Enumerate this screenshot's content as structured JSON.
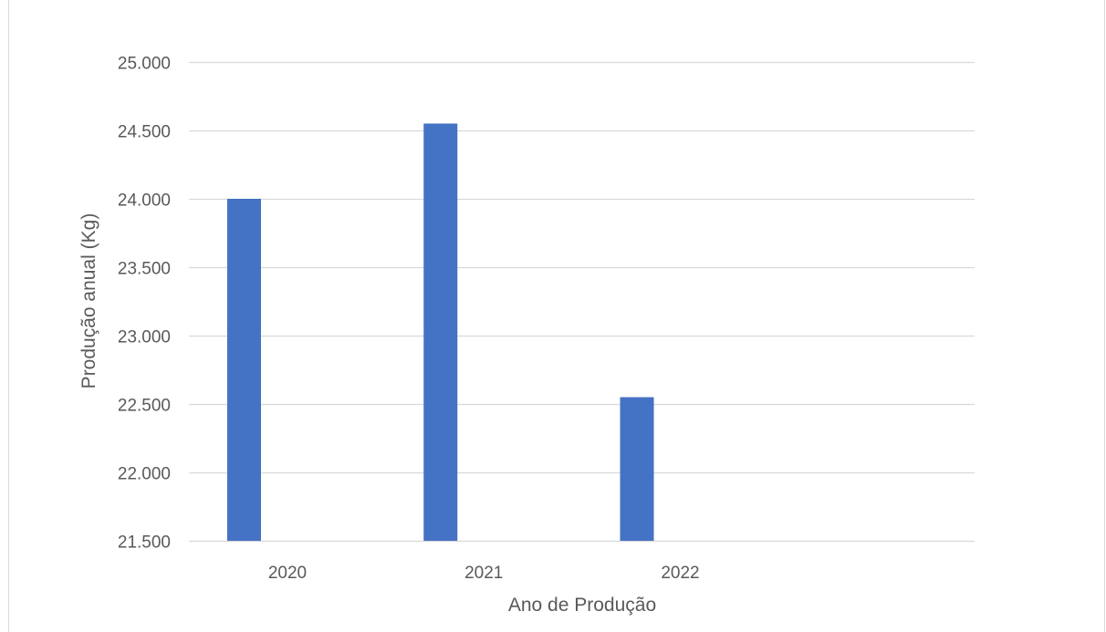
{
  "chart_data": {
    "type": "bar",
    "title": "",
    "xlabel": "Ano de Produção",
    "ylabel": "Produção anual (Kg)",
    "categories": [
      "2020",
      "2021",
      "2022"
    ],
    "values": [
      24000,
      24550,
      22550
    ],
    "ylim": [
      21500,
      25000
    ],
    "ytick_values": [
      21500,
      22000,
      22500,
      23000,
      23500,
      24000,
      24500,
      25000
    ],
    "ytick_labels": [
      "21.500",
      "22.000",
      "22.500",
      "23.000",
      "23.500",
      "24.000",
      "24.500",
      "25.000"
    ],
    "grid": true,
    "legend": "none",
    "bar_color": "#4472c4",
    "grid_color": "#d9d9d9"
  }
}
